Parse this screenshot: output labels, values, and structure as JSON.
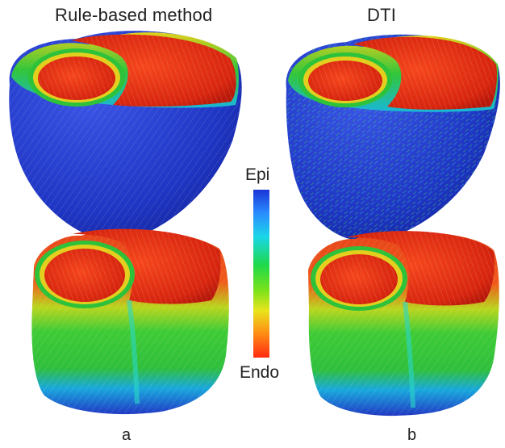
{
  "headers": {
    "left": "Rule-based method",
    "right": "DTI"
  },
  "colorbar": {
    "top_label": "Epi",
    "bottom_label": "Endo",
    "gradient": [
      "#1a35d6",
      "#2a8cff",
      "#19d6e8",
      "#1fd94a",
      "#7be21a",
      "#e8e41c",
      "#ff8a14",
      "#ff2a10"
    ]
  },
  "panel_labels": {
    "a": "a",
    "b": "b"
  },
  "colors": {
    "epicardium_blue": "#1f38c8",
    "endocardium_red": "#e42a14",
    "mid_green": "#2fc93a",
    "yellow": "#e9d21d"
  }
}
